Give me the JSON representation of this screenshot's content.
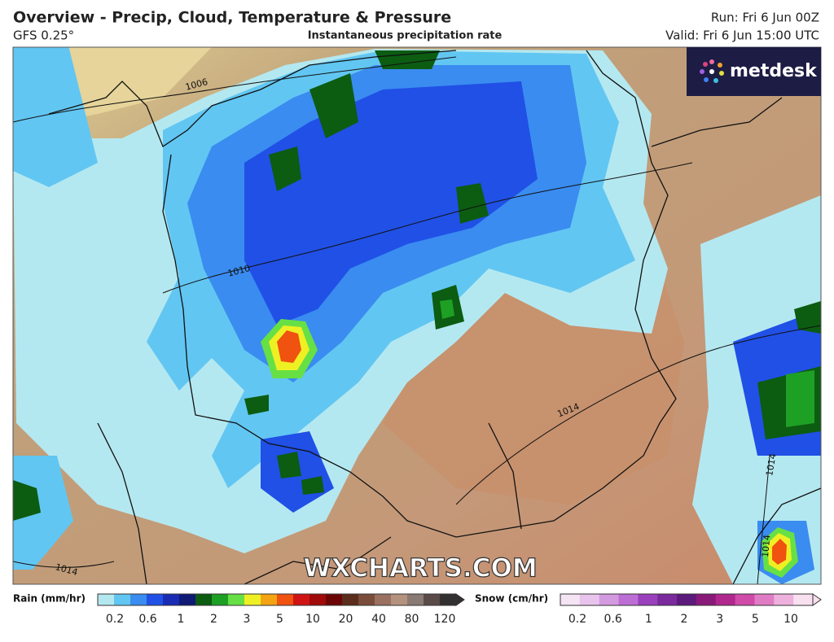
{
  "header": {
    "title": "Overview - Precip, Cloud, Temperature & Pressure",
    "model": "GFS 0.25°",
    "layer": "Instantaneous precipitation rate",
    "run": "Run: Fri 6 Jun 00Z",
    "valid": "Valid: Fri 6 Jun 15:00 UTC"
  },
  "map": {
    "logo": "metdesk",
    "watermark": "WXCHARTS.COM",
    "isobar_labels": [
      "1006",
      "1010",
      "1014",
      "1014",
      "1014",
      "1014"
    ]
  },
  "rain_legend": {
    "label": "Rain (mm/hr)",
    "ticks": [
      "0.2",
      "0.6",
      "1",
      "2",
      "3",
      "5",
      "10",
      "20",
      "40",
      "80",
      "120"
    ],
    "colors": [
      "#b4e8f0",
      "#62c6f2",
      "#3a8cf0",
      "#2050e6",
      "#1a2cb4",
      "#0e1a74",
      "#0c5c12",
      "#1ea024",
      "#66e044",
      "#eef024",
      "#f4a412",
      "#f05210",
      "#d01414",
      "#a00a0a",
      "#6c0606",
      "#5c2c1c",
      "#7a4c3a",
      "#9a7060",
      "#b4927e",
      "#8a7a74",
      "#5a4a48",
      "#333030"
    ]
  },
  "snow_legend": {
    "label": "Snow (cm/hr)",
    "ticks": [
      "0.2",
      "0.6",
      "1",
      "2",
      "3",
      "5",
      "10"
    ],
    "colors": [
      "#f4e4f4",
      "#e8c4ec",
      "#d49ae0",
      "#bc6ed4",
      "#9a40bc",
      "#7a2a9c",
      "#5c1a7c",
      "#8a1a7a",
      "#b0288e",
      "#d04aa8",
      "#e07cc4",
      "#eeb0dc",
      "#f8e0f0"
    ]
  }
}
